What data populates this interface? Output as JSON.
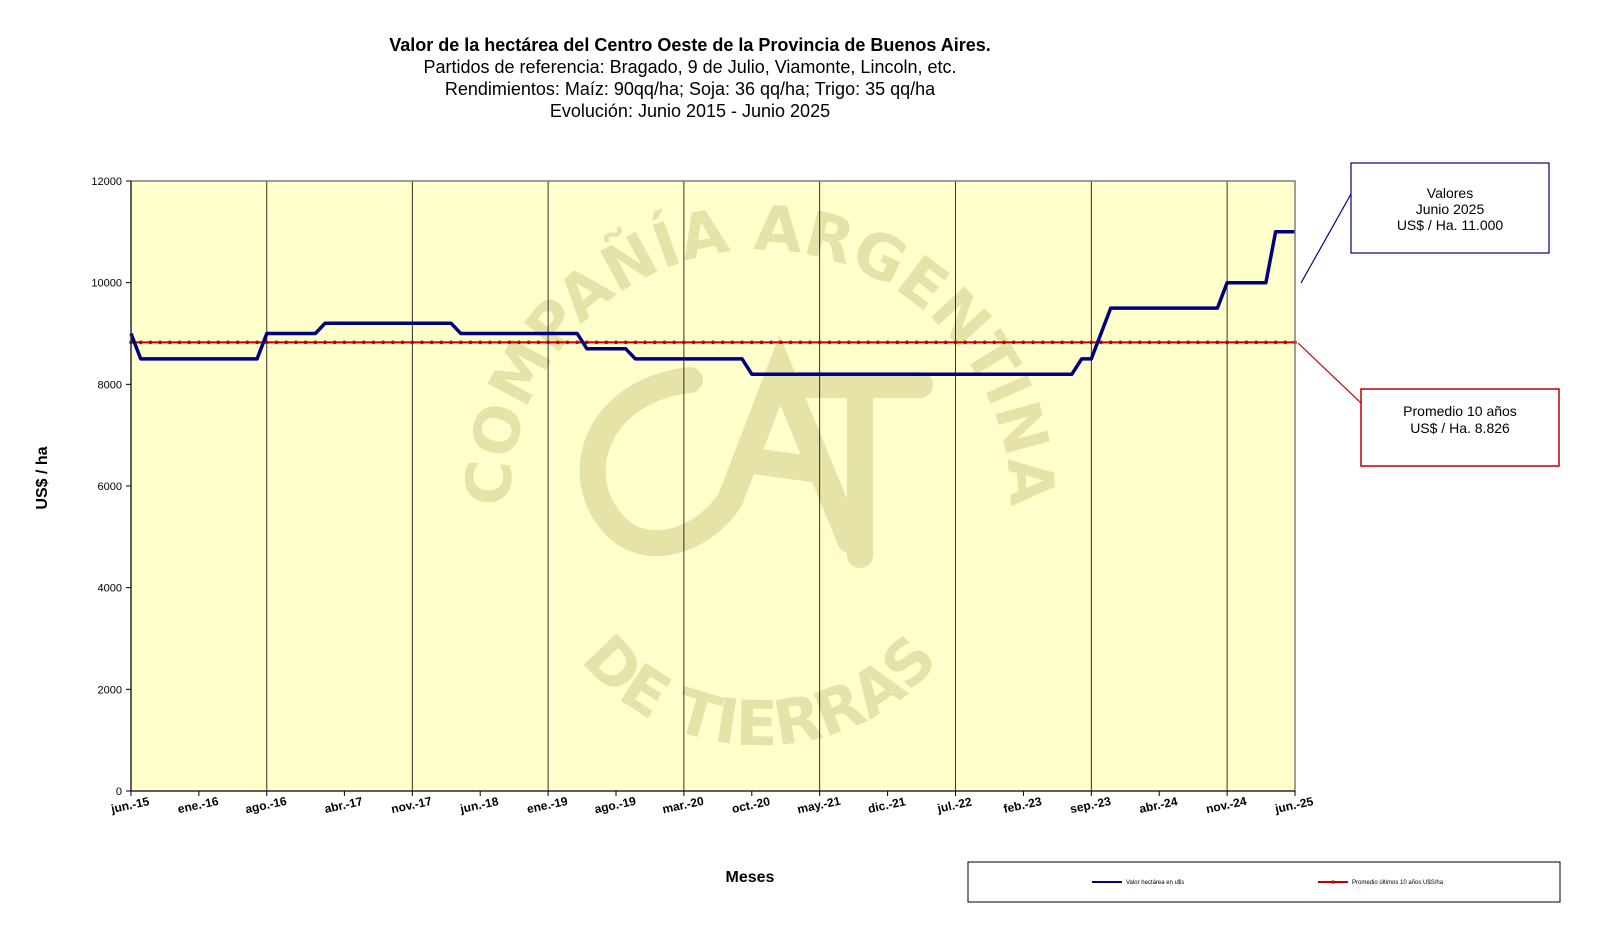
{
  "header": {
    "title": "Valor de la hectárea del Centro Oeste de la Provincia de Buenos Aires.",
    "subtitle1": "Partidos de referencia: Bragado, 9 de Julio, Viamonte, Lincoln, etc.",
    "subtitle2": "Rendimientos: Maíz: 90qq/ha; Soja: 36 qq/ha; Trigo: 35 qq/ha",
    "subtitle3": "Evolución: Junio 2015 - Junio 2025"
  },
  "watermark": {
    "top_arc": "COMPAÑÍA ARGENTINA",
    "bottom_arc": "DE TIERRAS",
    "logo": "CAT"
  },
  "annotations": {
    "current": {
      "line1": "Valores",
      "line2": "Junio  2025",
      "line3": "US$ / Ha. 11.000"
    },
    "average": {
      "line1": "Promedio 10 años",
      "line2": "US$ / Ha. 8.826"
    }
  },
  "colors": {
    "plot_bg": "#ffffcc",
    "value_line": "#000080",
    "average_line": "#c00000",
    "gridline": "#000000"
  },
  "chart_data": {
    "type": "line",
    "xlabel": "Meses",
    "ylabel": "US$ / ha",
    "ylim": [
      0,
      12000
    ],
    "yticks": [
      0,
      2000,
      4000,
      6000,
      8000,
      10000,
      12000
    ],
    "xtick_labels": [
      "jun.-15",
      "ene.-16",
      "ago.-16",
      "abr.-17",
      "nov.-17",
      "jun.-18",
      "ene.-19",
      "ago.-19",
      "mar.-20",
      "oct.-20",
      "may.-21",
      "dic.-21",
      "jul.-22",
      "feb.-23",
      "sep.-23",
      "abr.-24",
      "nov.-24",
      "jun.-25"
    ],
    "grid": "vertical",
    "legend_position": "bottom-right",
    "series": [
      {
        "name": "Valor hectárea en u$s",
        "color": "#000080",
        "points": [
          [
            "jun.-15",
            9000
          ],
          [
            "jul.-15",
            8500
          ],
          [
            "jul.-16",
            8500
          ],
          [
            "ago.-16",
            9000
          ],
          [
            "ene.-17",
            9000
          ],
          [
            "feb.-17",
            9200
          ],
          [
            "mar.-18",
            9200
          ],
          [
            "abr.-18",
            9000
          ],
          [
            "abr.-19",
            9000
          ],
          [
            "may.-19",
            8700
          ],
          [
            "sep.-19",
            8700
          ],
          [
            "oct.-19",
            8500
          ],
          [
            "sep.-20",
            8500
          ],
          [
            "oct.-20",
            8200
          ],
          [
            "jul.-23",
            8200
          ],
          [
            "ago.-23",
            8500
          ],
          [
            "sep.-23",
            8500
          ],
          [
            "nov.-23",
            9500
          ],
          [
            "oct.-24",
            9500
          ],
          [
            "nov.-24",
            10000
          ],
          [
            "mar.-25",
            10000
          ],
          [
            "abr.-25",
            11000
          ],
          [
            "jun.-25",
            11000
          ]
        ]
      },
      {
        "name": "Promedio últimos 10 años U$S/ha",
        "color": "#c00000",
        "value": 8826
      }
    ]
  }
}
